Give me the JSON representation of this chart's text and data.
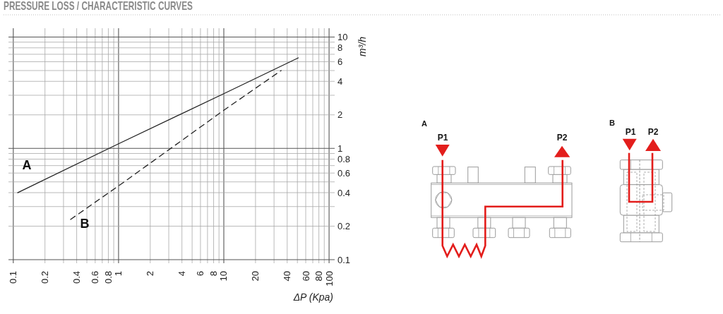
{
  "chart_data": {
    "type": "line",
    "title": "PRESSURE LOSS / CHARACTERISTIC CURVES",
    "xlabel": "ΔP (Kpa)",
    "ylabel": "m³/h",
    "series": [
      {
        "name": "A",
        "color": "#222222",
        "line_style": "solid",
        "x": [
          0.11,
          1,
          10,
          51
        ],
        "values": [
          0.4,
          1.1,
          3.1,
          6.5
        ]
      },
      {
        "name": "B",
        "color": "#222222",
        "line_style": "dashed",
        "x": [
          0.35,
          1,
          10,
          35
        ],
        "values": [
          0.23,
          0.46,
          2.2,
          5.0
        ]
      }
    ],
    "xlim": [
      0.09,
      113
    ],
    "ylim": [
      0.093,
      12
    ],
    "xticks": [
      0.1,
      0.2,
      {
        "value": 0.3,
        "label": null
      },
      0.4,
      {
        "value": 0.5,
        "label": null
      },
      0.6,
      {
        "value": 0.7,
        "label": null
      },
      0.8,
      {
        "value": 0.9,
        "label": null
      },
      1,
      2,
      {
        "value": 3,
        "label": null
      },
      4,
      {
        "value": 5,
        "label": null
      },
      6,
      {
        "value": 7,
        "label": null
      },
      8,
      {
        "value": 9,
        "label": null
      },
      10,
      20,
      {
        "value": 30,
        "label": null
      },
      40,
      {
        "value": 50,
        "label": null
      },
      60,
      {
        "value": 70,
        "label": null
      },
      80,
      {
        "value": 90,
        "label": null
      },
      100
    ],
    "yticks": [
      0.1,
      0.2,
      {
        "value": 0.3,
        "label": null
      },
      0.4,
      {
        "value": 0.5,
        "label": null
      },
      0.6,
      {
        "value": 0.7,
        "label": null
      },
      0.8,
      {
        "value": 0.9,
        "label": null
      },
      1,
      2,
      {
        "value": 3,
        "label": null
      },
      4,
      {
        "value": 5,
        "label": null
      },
      6,
      {
        "value": 7,
        "label": null
      },
      8,
      {
        "value": 9,
        "label": null
      },
      10
    ],
    "log": "xy",
    "grid": true,
    "annotations": [
      "A",
      "P1",
      "P2",
      "B",
      "P1",
      "P2"
    ]
  }
}
